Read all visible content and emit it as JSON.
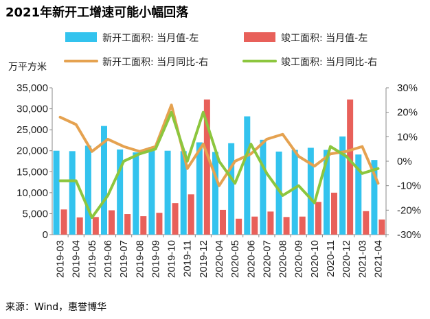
{
  "page": {
    "title": "2021年新开工增速可能小幅回落",
    "source": "来源：Wind，惠誉博华"
  },
  "chart_data": {
    "type": "bar",
    "title": "2021年新开工增速可能小幅回落",
    "ylabel_left": "万平方米",
    "categories": [
      "2019-03",
      "2019-04",
      "2019-05",
      "2019-06",
      "2019-07",
      "2019-08",
      "2019-09",
      "2019-10",
      "2019-11",
      "2019-12",
      "2020-04",
      "2020-05",
      "2020-06",
      "2020-07",
      "2020-08",
      "2020-09",
      "2020-10",
      "2020-11",
      "2020-12",
      "2021-03",
      "2021-04"
    ],
    "ylim_left": [
      0,
      35000
    ],
    "yticks_left": [
      "0",
      "5,000",
      "10,000",
      "15,000",
      "20,000",
      "25,000",
      "30,000",
      "35,000"
    ],
    "ylim_right": [
      -30,
      30
    ],
    "yticks_right": [
      "-30%",
      "-20%",
      "-10%",
      "0%",
      "10%",
      "20%",
      "30%"
    ],
    "legend_position": "top",
    "grid": false,
    "series": [
      {
        "name": "新开工面积: 当月值-左",
        "type": "bar",
        "axis": "left",
        "color": "#33c3ee",
        "values": [
          20000,
          19900,
          21200,
          25900,
          20300,
          19600,
          20900,
          20000,
          19900,
          22000,
          19700,
          21800,
          28200,
          22600,
          19800,
          20200,
          20700,
          20200,
          23400,
          19100,
          17800
        ]
      },
      {
        "name": "竣工面积: 当月值-左",
        "type": "bar",
        "axis": "left",
        "color": "#e8605a",
        "values": [
          6000,
          4100,
          4200,
          5800,
          4900,
          4400,
          5200,
          7500,
          9600,
          32200,
          5900,
          3800,
          4300,
          5500,
          4200,
          4300,
          7800,
          10000,
          32200,
          5600,
          3600
        ]
      },
      {
        "name": "新开工面积: 当月同比-右",
        "type": "line",
        "axis": "right",
        "color": "#e5a250",
        "values": [
          18,
          15,
          4,
          9,
          6,
          4,
          6,
          23,
          -3,
          7,
          -10,
          0,
          3,
          9,
          11,
          2,
          -2,
          3,
          4,
          6,
          -9
        ]
      },
      {
        "name": "竣工面积: 当月同比-右",
        "type": "line",
        "axis": "right",
        "color": "#8cc63e",
        "values": [
          -8,
          -8,
          -23,
          -14,
          0,
          3,
          5,
          20,
          0,
          20,
          0,
          -9,
          7,
          -5,
          -14,
          -10,
          -17,
          6,
          2,
          -5,
          -3
        ]
      }
    ]
  }
}
